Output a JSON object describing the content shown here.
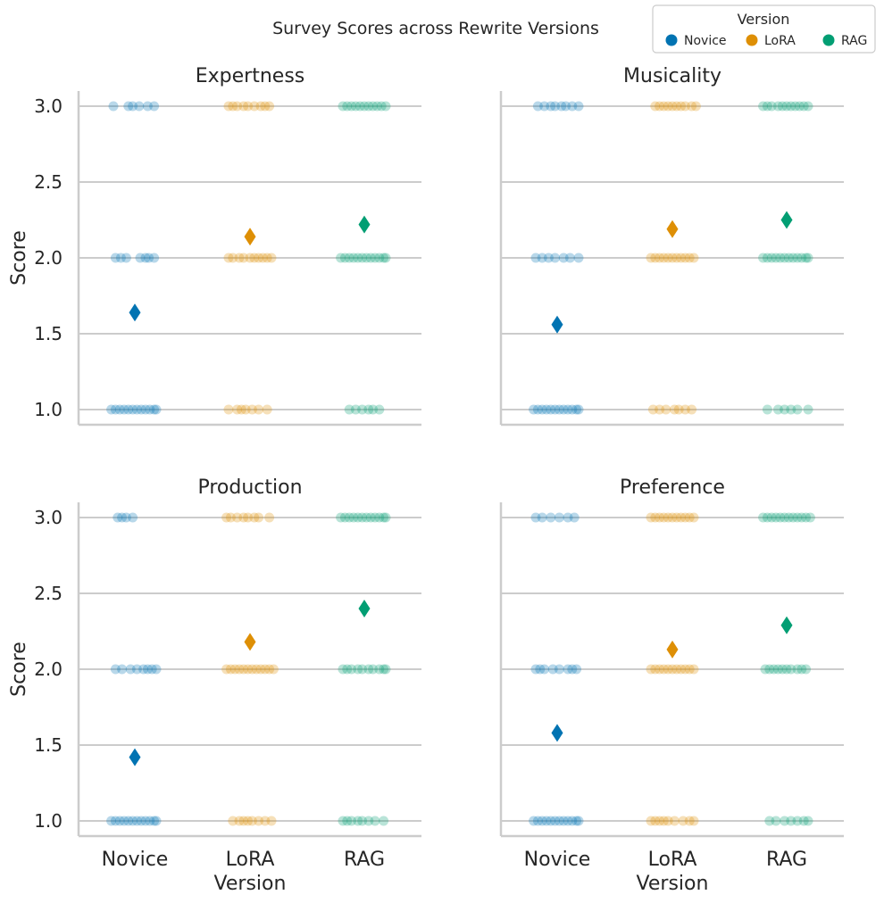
{
  "chart_data": {
    "type": "scatter",
    "suptitle": "Survey Scores across Rewrite Versions",
    "legend": {
      "title": "Version",
      "placement": "top-right",
      "entries": [
        {
          "name": "Novice",
          "color": "#0173b2"
        },
        {
          "name": "LoRA",
          "color": "#de8f05"
        },
        {
          "name": "RAG",
          "color": "#029e73"
        }
      ]
    },
    "categories": [
      "Novice",
      "LoRA",
      "RAG"
    ],
    "xlabel": "Version",
    "ylabel": "Score",
    "ylim": [
      0.9,
      3.1
    ],
    "yticks": [
      "1.0",
      "1.5",
      "2.0",
      "2.5",
      "3.0"
    ],
    "grid": "horizontal",
    "mean_marker": "diamond",
    "panels": [
      {
        "title": "Expertness",
        "means": [
          1.64,
          2.14,
          2.22
        ],
        "points": [
          {
            "1": [
              -0.22,
              -0.18,
              -0.14,
              -0.1,
              -0.06,
              -0.02,
              0.02,
              0.06,
              0.1,
              0.14,
              0.18,
              0.2
            ],
            "2": [
              -0.18,
              -0.13,
              -0.08,
              0.05,
              0.1,
              0.13,
              0.18
            ],
            "3": [
              -0.2,
              -0.06,
              -0.02,
              0.04,
              0.12,
              0.18
            ]
          },
          {
            "1": [
              -0.2,
              -0.12,
              -0.08,
              -0.04,
              0.02,
              0.08,
              0.16
            ],
            "2": [
              -0.2,
              -0.16,
              -0.1,
              -0.06,
              0,
              0.04,
              0.08,
              0.12,
              0.16,
              0.2
            ],
            "3": [
              -0.2,
              -0.16,
              -0.12,
              -0.06,
              -0.02,
              0.04,
              0.1,
              0.14,
              0.18
            ]
          },
          {
            "1": [
              -0.14,
              -0.08,
              -0.02,
              0.04,
              0.08,
              0.14
            ],
            "2": [
              -0.22,
              -0.18,
              -0.14,
              -0.1,
              -0.06,
              -0.02,
              0.02,
              0.06,
              0.1,
              0.14,
              0.18,
              0.2
            ],
            "3": [
              -0.2,
              -0.16,
              -0.12,
              -0.08,
              -0.04,
              0,
              0.04,
              0.08,
              0.12,
              0.16,
              0.2
            ]
          }
        ]
      },
      {
        "title": "Musicality",
        "means": [
          1.56,
          2.19,
          2.25
        ],
        "points": [
          {
            "1": [
              -0.22,
              -0.18,
              -0.14,
              -0.1,
              -0.06,
              -0.02,
              0.02,
              0.06,
              0.1,
              0.14,
              0.18,
              0.2
            ],
            "2": [
              -0.2,
              -0.14,
              -0.08,
              -0.02,
              0.06,
              0.12,
              0.2
            ],
            "3": [
              -0.18,
              -0.12,
              -0.06,
              -0.02,
              0.04,
              0.08,
              0.14,
              0.2
            ]
          },
          {
            "1": [
              -0.18,
              -0.12,
              -0.06,
              0.02,
              0.06,
              0.12,
              0.18
            ],
            "2": [
              -0.2,
              -0.16,
              -0.12,
              -0.08,
              -0.04,
              0,
              0.04,
              0.08,
              0.12,
              0.16,
              0.2
            ],
            "3": [
              -0.16,
              -0.12,
              -0.08,
              -0.04,
              0,
              0.04,
              0.08,
              0.12,
              0.18,
              0.22
            ]
          },
          {
            "1": [
              -0.18,
              -0.08,
              -0.02,
              0.04,
              0.1,
              0.2
            ],
            "2": [
              -0.22,
              -0.18,
              -0.14,
              -0.1,
              -0.06,
              -0.02,
              0.02,
              0.06,
              0.1,
              0.14,
              0.18,
              0.2
            ],
            "3": [
              -0.22,
              -0.18,
              -0.14,
              -0.08,
              -0.04,
              0,
              0.04,
              0.08,
              0.12,
              0.16,
              0.2
            ]
          }
        ]
      },
      {
        "title": "Production",
        "means": [
          1.42,
          2.18,
          2.4
        ],
        "points": [
          {
            "1": [
              -0.22,
              -0.18,
              -0.14,
              -0.1,
              -0.06,
              -0.02,
              0.02,
              0.06,
              0.1,
              0.14,
              0.18,
              0.2
            ],
            "2": [
              -0.18,
              -0.12,
              -0.04,
              0.02,
              0.08,
              0.12,
              0.16,
              0.2
            ],
            "3": [
              -0.16,
              -0.12,
              -0.08,
              -0.02
            ]
          },
          {
            "1": [
              -0.16,
              -0.1,
              -0.06,
              -0.02,
              0.02,
              0.08,
              0.14,
              0.2
            ],
            "2": [
              -0.22,
              -0.18,
              -0.14,
              -0.1,
              -0.06,
              -0.02,
              0.02,
              0.06,
              0.1,
              0.14,
              0.18,
              0.22
            ],
            "3": [
              -0.22,
              -0.18,
              -0.12,
              -0.06,
              -0.02,
              0.04,
              0.08,
              0.18
            ]
          },
          {
            "1": [
              -0.2,
              -0.16,
              -0.12,
              -0.06,
              -0.02,
              0.04,
              0.1,
              0.18
            ],
            "2": [
              -0.2,
              -0.16,
              -0.12,
              -0.06,
              -0.02,
              0.04,
              0.08,
              0.14,
              0.18,
              0.2
            ],
            "3": [
              -0.22,
              -0.18,
              -0.14,
              -0.1,
              -0.06,
              -0.02,
              0.02,
              0.06,
              0.1,
              0.14,
              0.18,
              0.2
            ]
          }
        ]
      },
      {
        "title": "Preference",
        "means": [
          1.58,
          2.13,
          2.29
        ],
        "points": [
          {
            "1": [
              -0.22,
              -0.18,
              -0.14,
              -0.1,
              -0.06,
              -0.02,
              0.02,
              0.06,
              0.1,
              0.14,
              0.18,
              0.2
            ],
            "2": [
              -0.2,
              -0.16,
              -0.12,
              -0.04,
              0.02,
              0.1,
              0.14,
              0.18
            ],
            "3": [
              -0.2,
              -0.14,
              -0.06,
              0.02,
              0.1,
              0.16
            ]
          },
          {
            "1": [
              -0.2,
              -0.16,
              -0.12,
              -0.08,
              -0.04,
              0.02,
              0.1,
              0.16,
              0.2
            ],
            "2": [
              -0.2,
              -0.16,
              -0.12,
              -0.08,
              -0.04,
              0,
              0.04,
              0.08,
              0.12,
              0.16,
              0.2
            ],
            "3": [
              -0.2,
              -0.16,
              -0.12,
              -0.08,
              -0.04,
              0,
              0.04,
              0.08,
              0.12,
              0.16,
              0.2
            ]
          },
          {
            "1": [
              -0.16,
              -0.1,
              -0.02,
              0.04,
              0.1,
              0.16,
              0.2
            ],
            "2": [
              -0.2,
              -0.16,
              -0.12,
              -0.08,
              -0.04,
              0,
              0.04,
              0.1,
              0.14,
              0.18
            ],
            "3": [
              -0.22,
              -0.18,
              -0.14,
              -0.1,
              -0.06,
              -0.02,
              0.02,
              0.06,
              0.1,
              0.14,
              0.18,
              0.22
            ]
          }
        ]
      }
    ]
  }
}
